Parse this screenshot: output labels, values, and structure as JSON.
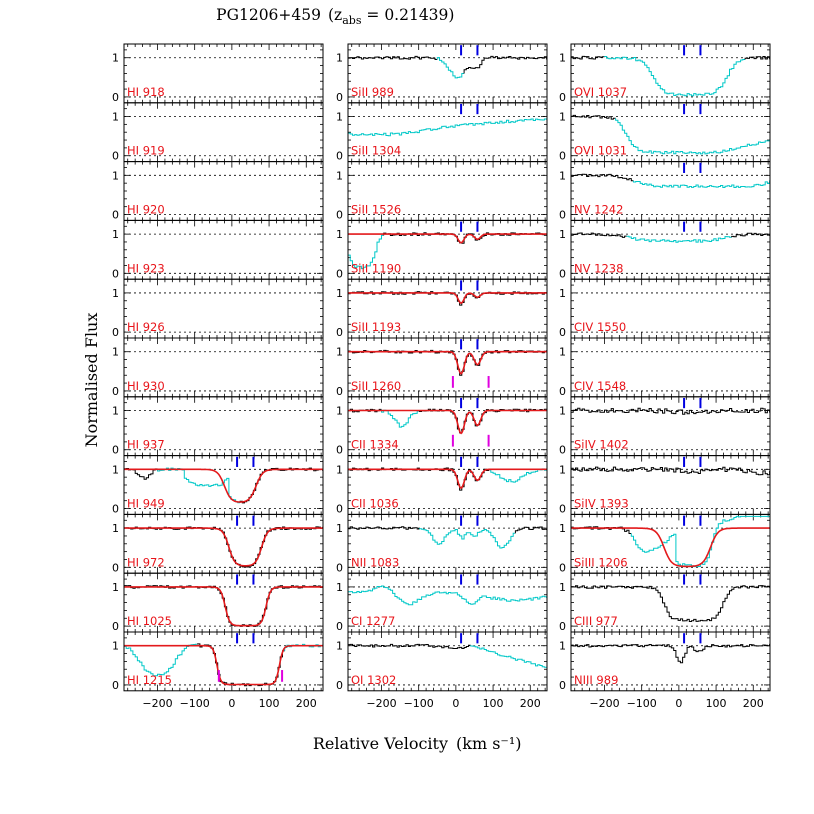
{
  "chart_data": {
    "type": "line",
    "title": "PG1206+459",
    "title_redshift": "0.21439",
    "xlabel": "Relative Velocity",
    "xlabel_units": "(km s⁻¹)",
    "ylabel": "Normalised Flux",
    "xlim": [
      -290,
      245
    ],
    "ylim": [
      -0.15,
      1.35
    ],
    "x_ticks": [
      -200,
      -100,
      0,
      100,
      200
    ],
    "x_tick_labels": [
      "−200",
      "−100",
      "0",
      "100",
      "200"
    ],
    "y_ticks": [
      0,
      1
    ],
    "y_tick_labels": [
      "0",
      "1"
    ],
    "component_velocities": [
      14,
      58
    ],
    "colors": {
      "data": "#000000",
      "blend": "#00c8c8",
      "fit": "#e31a1c",
      "label": "#e8141a",
      "component": "#0000e0",
      "limit": "#e000e0"
    },
    "columns": [
      {
        "panels": [
          {
            "label": "HI 918",
            "profile": "blank"
          },
          {
            "label": "HI 919",
            "profile": "blank"
          },
          {
            "label": "HI 920",
            "profile": "blank"
          },
          {
            "label": "HI 923",
            "profile": "blank"
          },
          {
            "label": "HI 926",
            "profile": "blank"
          },
          {
            "label": "HI 930",
            "profile": "blank"
          },
          {
            "label": "HI 937",
            "profile": "blank"
          },
          {
            "label": "HI 949",
            "profile": "hi949",
            "fit": true
          },
          {
            "label": "HI 972",
            "profile": "hi972",
            "fit": true
          },
          {
            "label": "HI 1025",
            "profile": "hi1025",
            "fit": true
          },
          {
            "label": "HI 1215",
            "profile": "hi1215",
            "fit": true,
            "limits": [
              -35,
              135
            ]
          }
        ]
      },
      {
        "panels": [
          {
            "label": "SiII 989",
            "profile": "si989"
          },
          {
            "label": "SiII 1304",
            "profile": "si1304"
          },
          {
            "label": "SiII 1526",
            "profile": "blank"
          },
          {
            "label": "SiII 1190",
            "profile": "si1190",
            "fit": true
          },
          {
            "label": "SiII 1193",
            "profile": "si1193",
            "fit": true
          },
          {
            "label": "SiII 1260",
            "profile": "si1260",
            "fit": true,
            "limits": [
              -8,
              88
            ]
          },
          {
            "label": "CII 1334",
            "profile": "c1334",
            "fit": true,
            "limits": [
              -8,
              88
            ]
          },
          {
            "label": "CII 1036",
            "profile": "c1036",
            "fit": true
          },
          {
            "label": "NII 1083",
            "profile": "n1083"
          },
          {
            "label": "CI 1277",
            "profile": "c1277"
          },
          {
            "label": "OI 1302",
            "profile": "o1302"
          }
        ]
      },
      {
        "panels": [
          {
            "label": "OVI 1037",
            "profile": "o1037"
          },
          {
            "label": "OVI 1031",
            "profile": "o1031"
          },
          {
            "label": "NV 1242",
            "profile": "n1242"
          },
          {
            "label": "NV 1238",
            "profile": "n1238"
          },
          {
            "label": "CIV 1550",
            "profile": "blank"
          },
          {
            "label": "CIV 1548",
            "profile": "blank"
          },
          {
            "label": "SiIV 1402",
            "profile": "s1402"
          },
          {
            "label": "SiIV 1393",
            "profile": "s1393"
          },
          {
            "label": "SiIII 1206",
            "profile": "s1206",
            "fit": true
          },
          {
            "label": "CIII 977",
            "profile": "c977"
          },
          {
            "label": "NIII 989",
            "profile": "n989"
          }
        ]
      }
    ]
  }
}
